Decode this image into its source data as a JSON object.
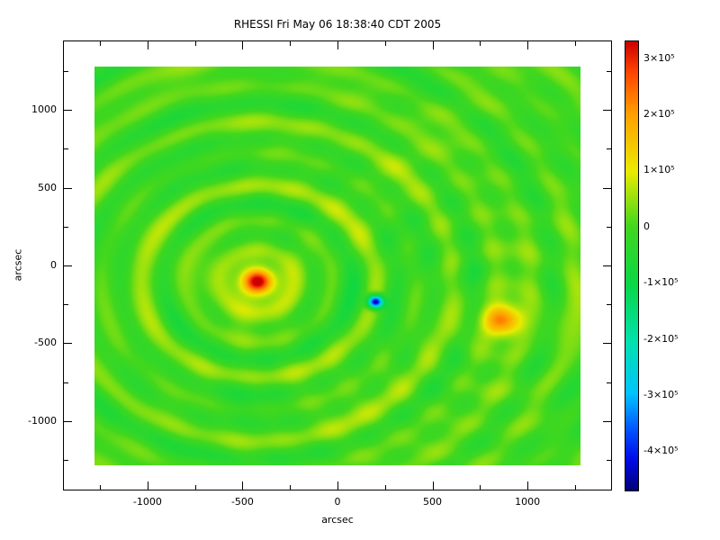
{
  "title": "RHESSI Fri May 06 18:38:40 CDT 2005",
  "chart_data": {
    "type": "heatmap",
    "title": "RHESSI Fri May 06 18:38:40 CDT 2005",
    "xlabel": "arcsec",
    "ylabel": "arcsec",
    "xlim": [
      -1440,
      1440
    ],
    "ylim": [
      -1440,
      1440
    ],
    "image_extent": [
      -1280,
      1280,
      -1280,
      1280
    ],
    "xticks": [
      -1000,
      -500,
      0,
      500,
      1000
    ],
    "yticks": [
      -1000,
      -500,
      0,
      500,
      1000
    ],
    "minor_tick_step": 250,
    "grid": false,
    "colorbar": {
      "vmin": -470000,
      "vmax": 330000,
      "position": "right",
      "ticks": [
        {
          "value": 300000,
          "label": "3×10⁵"
        },
        {
          "value": 200000,
          "label": "2×10⁵"
        },
        {
          "value": 100000,
          "label": "1×10⁵"
        },
        {
          "value": 0,
          "label": "0"
        },
        {
          "value": -100000,
          "label": "-1×10⁵"
        },
        {
          "value": -200000,
          "label": "-2×10⁵"
        },
        {
          "value": -300000,
          "label": "-3×10⁵"
        },
        {
          "value": -400000,
          "label": "-4×10⁵"
        }
      ]
    },
    "colormap": [
      [
        0.0,
        [
          0,
          0,
          120
        ]
      ],
      [
        0.07,
        [
          0,
          10,
          235
        ]
      ],
      [
        0.14,
        [
          0,
          90,
          255
        ]
      ],
      [
        0.215,
        [
          0,
          195,
          255
        ]
      ],
      [
        0.33,
        [
          0,
          225,
          175
        ]
      ],
      [
        0.46,
        [
          10,
          215,
          70
        ]
      ],
      [
        0.5875,
        [
          65,
          215,
          30
        ]
      ],
      [
        0.71,
        [
          235,
          235,
          0
        ]
      ],
      [
        0.8375,
        [
          255,
          160,
          0
        ]
      ],
      [
        0.93,
        [
          255,
          70,
          0
        ]
      ],
      [
        1.0,
        [
          205,
          0,
          0
        ]
      ]
    ],
    "field": {
      "sources": [
        {
          "x": -420,
          "y": -100,
          "sigma": 75,
          "amp": 340000,
          "note": "main-source-red"
        },
        {
          "x": 870,
          "y": -350,
          "sigma": 85,
          "amp": 220000,
          "note": "secondary-source-orange"
        },
        {
          "x": 200,
          "y": -230,
          "sigma": 28,
          "amp": -500000,
          "note": "negative-source-blue"
        }
      ],
      "rings": [
        {
          "cx": -420,
          "cy": -100,
          "wavelength": 210,
          "phase": 0.5,
          "amp": 45000,
          "decay": 2500
        },
        {
          "cx": -420,
          "cy": -100,
          "wavelength": 360,
          "phase": 1.5,
          "amp": 30000,
          "decay": 3000
        },
        {
          "cx": 870,
          "cy": -350,
          "wavelength": 230,
          "phase": 0.0,
          "amp": 22000,
          "decay": 1500
        }
      ],
      "mottle": [
        {
          "fx": 140,
          "px": 1.3,
          "fy": 170,
          "py": 0.4,
          "amp": 14000
        },
        {
          "fx": 90,
          "px": 4.0,
          "fy": 115,
          "py": 2.1,
          "amp": 10000
        },
        {
          "fx": 330,
          "px": 0.7,
          "fy": 260,
          "py": 5.2,
          "amp": 12000
        }
      ]
    }
  }
}
